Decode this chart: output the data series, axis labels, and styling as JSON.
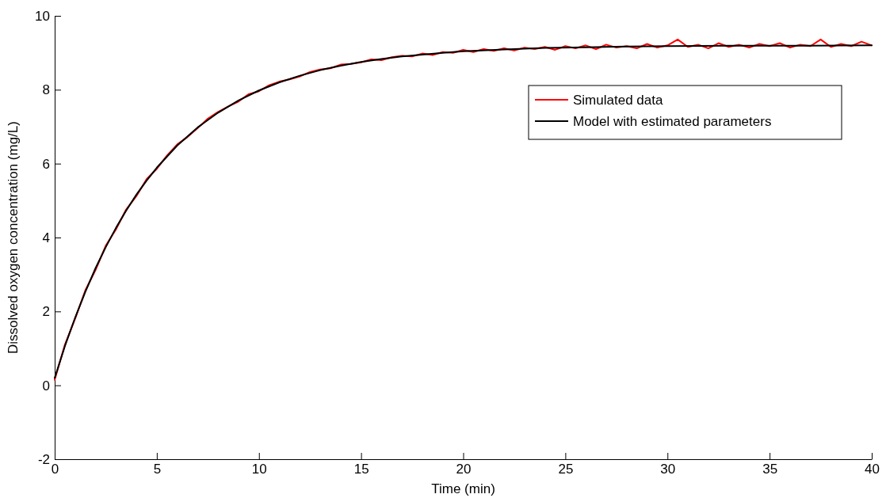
{
  "chart_data": {
    "type": "line",
    "xlabel": "Time (min)",
    "ylabel": "Dissolved oxygen concentration (mg/L)",
    "xlim": [
      0,
      40
    ],
    "xticks": [
      0,
      5,
      10,
      15,
      20,
      25,
      30,
      35,
      40
    ],
    "ylim": [
      -2,
      10
    ],
    "yticks": [
      -2,
      0,
      2,
      4,
      6,
      8,
      10
    ],
    "legend": "top right",
    "line_style": "solid",
    "series": [
      {
        "name": "Simulated data",
        "color": "#ff0000",
        "x": [
          0,
          0.5,
          1,
          1.5,
          2,
          2.5,
          3,
          3.5,
          4,
          4.5,
          5,
          5.5,
          6,
          6.5,
          7,
          7.5,
          8,
          8.5,
          9,
          9.5,
          10,
          10.5,
          11,
          11.5,
          12,
          12.5,
          13,
          13.5,
          14,
          14.5,
          15,
          15.5,
          16,
          16.5,
          17,
          17.5,
          18,
          18.5,
          19,
          19.5,
          20,
          20.5,
          21,
          21.5,
          22,
          22.5,
          23,
          23.5,
          24,
          24.5,
          25,
          25.5,
          26,
          26.5,
          27,
          27.5,
          28,
          28.5,
          29,
          29.5,
          30,
          30.5,
          31,
          31.5,
          32,
          32.5,
          33,
          33.5,
          34,
          34.5,
          35,
          35.5,
          36,
          36.5,
          37,
          37.5,
          38,
          38.5,
          39,
          39.5,
          40
        ],
        "values": [
          0.15,
          1.1,
          1.8,
          2.57,
          3.12,
          3.78,
          4.22,
          4.76,
          5.12,
          5.58,
          5.86,
          6.22,
          6.52,
          6.72,
          6.96,
          7.22,
          7.4,
          7.55,
          7.68,
          7.88,
          7.96,
          8.12,
          8.22,
          8.28,
          8.36,
          8.48,
          8.55,
          8.58,
          8.68,
          8.7,
          8.74,
          8.82,
          8.8,
          8.88,
          8.92,
          8.9,
          8.98,
          8.94,
          9.02,
          9.0,
          9.08,
          9.02,
          9.1,
          9.05,
          9.12,
          9.06,
          9.14,
          9.1,
          9.16,
          9.08,
          9.18,
          9.12,
          9.2,
          9.1,
          9.22,
          9.14,
          9.18,
          9.12,
          9.24,
          9.14,
          9.2,
          9.36,
          9.16,
          9.22,
          9.12,
          9.26,
          9.16,
          9.22,
          9.14,
          9.24,
          9.18,
          9.26,
          9.14,
          9.22,
          9.18,
          9.36,
          9.16,
          9.24,
          9.18,
          9.3,
          9.2
        ]
      },
      {
        "name": "Model with estimated parameters",
        "color": "#000000",
        "x": [
          0,
          0.5,
          1,
          1.5,
          2,
          2.5,
          3,
          3.5,
          4,
          4.5,
          5,
          6,
          7,
          8,
          9,
          10,
          11,
          12,
          13,
          14,
          15,
          16,
          17,
          18,
          19,
          20,
          22,
          24,
          26,
          28,
          30,
          33,
          36,
          40
        ],
        "values": [
          0.2,
          1.06,
          1.83,
          2.53,
          3.17,
          3.74,
          4.26,
          4.73,
          5.16,
          5.54,
          5.89,
          6.49,
          6.98,
          7.38,
          7.71,
          7.98,
          8.2,
          8.38,
          8.53,
          8.65,
          8.75,
          8.83,
          8.9,
          8.95,
          9.0,
          9.04,
          9.09,
          9.13,
          9.15,
          9.17,
          9.18,
          9.19,
          9.19,
          9.2
        ]
      }
    ]
  }
}
